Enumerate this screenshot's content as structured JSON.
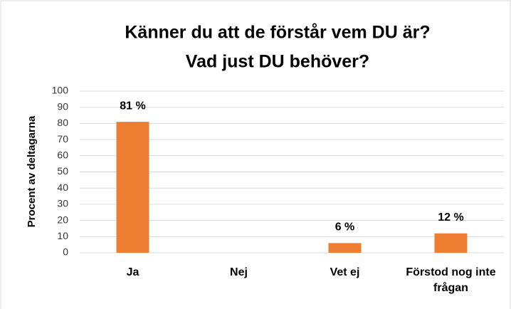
{
  "chart_data": {
    "type": "bar",
    "title": [
      "Känner du att de förstår vem DU är?",
      "Vad just DU behöver?"
    ],
    "y_label": "Procent av deltagarna",
    "categories": [
      "Ja",
      "Nej",
      "Vet ej",
      "Förstod nog inte frågan"
    ],
    "values": [
      81,
      0,
      6,
      12
    ],
    "value_labels": [
      "81 %",
      null,
      "6 %",
      "12 %"
    ],
    "color": "#ed7d31",
    "ylim": [
      0,
      100
    ],
    "yticks": [
      0,
      10,
      20,
      30,
      40,
      50,
      60,
      70,
      80,
      90,
      100
    ],
    "grid": true
  }
}
